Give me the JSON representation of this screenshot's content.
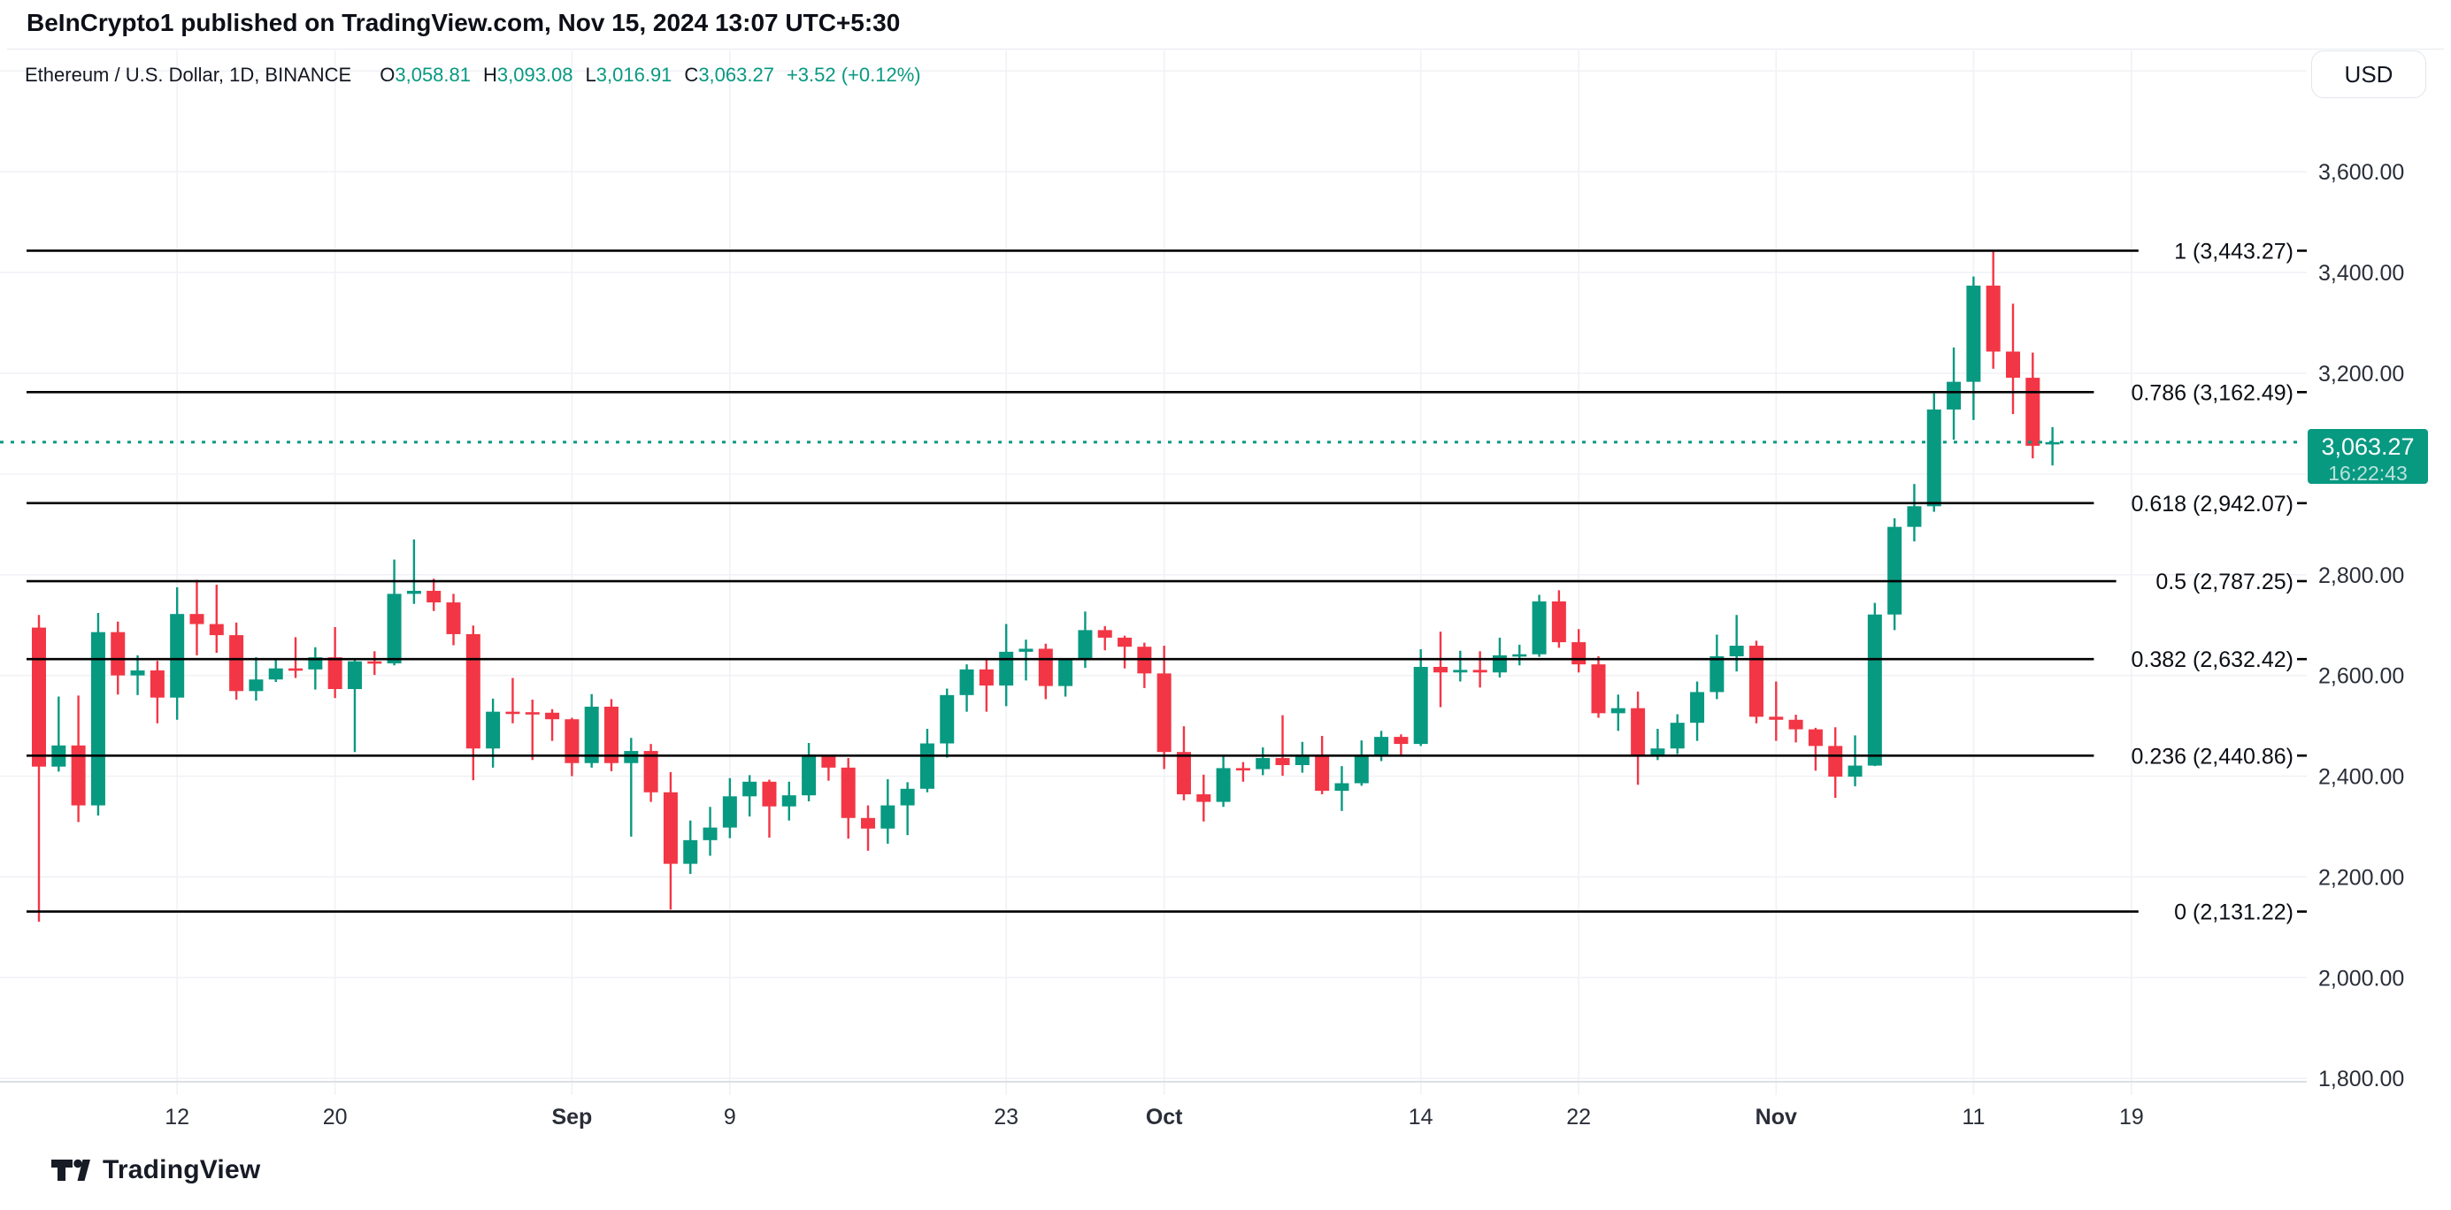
{
  "header": {
    "published_line": "BeInCrypto1 published on TradingView.com, Nov 15, 2024 13:07 UTC+5:30"
  },
  "legend": {
    "symbol": "Ethereum / U.S. Dollar, 1D, BINANCE",
    "open_label": "O",
    "open": "3,058.81",
    "high_label": "H",
    "high": "3,093.08",
    "low_label": "L",
    "low": "3,016.91",
    "close_label": "C",
    "close": "3,063.27",
    "change": "+3.52 (+0.12%)"
  },
  "price_scale": {
    "currency": "USD",
    "last_price": "3,063.27",
    "countdown": "16:22:43"
  },
  "footer": {
    "brand": "TradingView"
  },
  "chart_data": {
    "type": "candlestick",
    "symbol": "Ethereum / U.S. Dollar",
    "interval": "1D",
    "exchange": "BINANCE",
    "colors": {
      "up": "#089981",
      "down": "#F23645",
      "fib_line": "#000000",
      "last_price_line": "#089981",
      "grid": "#f0f2f6",
      "axis_text": "#2a2e39",
      "axis_line": "#dcdfe5"
    },
    "y_axis": {
      "min": 1800,
      "max": 3800,
      "step": 200,
      "gridline_values": [
        3800,
        3600,
        3400,
        3200,
        3000,
        2800,
        2600,
        2400,
        2200,
        2000,
        1800
      ],
      "tick_labels": [
        {
          "value": 3600,
          "label": "3,600.00"
        },
        {
          "value": 3400,
          "label": "3,400.00"
        },
        {
          "value": 3200,
          "label": "3,200.00"
        },
        {
          "value": 2800,
          "label": "2,800.00"
        },
        {
          "value": 2600,
          "label": "2,600.00"
        },
        {
          "value": 2400,
          "label": "2,400.00"
        },
        {
          "value": 2200,
          "label": "2,200.00"
        },
        {
          "value": 2000,
          "label": "2,000.00"
        },
        {
          "value": 1800,
          "label": "1,800.00"
        }
      ]
    },
    "x_labels": [
      {
        "label": "12",
        "date": "Aug 12"
      },
      {
        "label": "20",
        "date": "Aug 20"
      },
      {
        "label": "Sep",
        "date": "Sep 1"
      },
      {
        "label": "9",
        "date": "Sep 9"
      },
      {
        "label": "23",
        "date": "Sep 23"
      },
      {
        "label": "Oct",
        "date": "Oct 1"
      },
      {
        "label": "14",
        "date": "Oct 14"
      },
      {
        "label": "22",
        "date": "Oct 22"
      },
      {
        "label": "Nov",
        "date": "Nov 1"
      },
      {
        "label": "11",
        "date": "Nov 11"
      },
      {
        "label": "19",
        "date": "Nov 19"
      }
    ],
    "fib_levels": [
      {
        "level": 1,
        "price": 3443.27,
        "label": "1 (3,443.27)"
      },
      {
        "level": 0.786,
        "price": 3162.49,
        "label": "0.786 (3,162.49)"
      },
      {
        "level": 0.618,
        "price": 2942.07,
        "label": "0.618 (2,942.07)"
      },
      {
        "level": 0.5,
        "price": 2787.25,
        "label": "0.5 (2,787.25)"
      },
      {
        "level": 0.382,
        "price": 2632.42,
        "label": "0.382 (2,632.42)"
      },
      {
        "level": 0.236,
        "price": 2440.86,
        "label": "0.236 (2,440.86)"
      },
      {
        "level": 0,
        "price": 2131.22,
        "label": "0 (2,131.22)"
      }
    ],
    "last_price": {
      "value": 3063.27,
      "label": "3,063.27",
      "countdown": "16:22:43"
    },
    "candle_fields": [
      "date",
      "open",
      "high",
      "low",
      "close"
    ],
    "candles": [
      [
        "Aug 5",
        2695,
        2720,
        2111,
        2419
      ],
      [
        "Aug 6",
        2419,
        2558,
        2409,
        2461
      ],
      [
        "Aug 7",
        2461,
        2560,
        2309,
        2342
      ],
      [
        "Aug 8",
        2342,
        2724,
        2322,
        2686
      ],
      [
        "Aug 9",
        2686,
        2707,
        2562,
        2600
      ],
      [
        "Aug 10",
        2600,
        2640,
        2561,
        2610
      ],
      [
        "Aug 11",
        2610,
        2629,
        2505,
        2556
      ],
      [
        "Aug 12",
        2556,
        2775,
        2512,
        2722
      ],
      [
        "Aug 13",
        2722,
        2790,
        2640,
        2702
      ],
      [
        "Aug 14",
        2702,
        2780,
        2645,
        2680
      ],
      [
        "Aug 15",
        2680,
        2705,
        2552,
        2569
      ],
      [
        "Aug 16",
        2569,
        2636,
        2550,
        2592
      ],
      [
        "Aug 17",
        2592,
        2632,
        2587,
        2614
      ],
      [
        "Aug 18",
        2614,
        2676,
        2595,
        2612
      ],
      [
        "Aug 19",
        2612,
        2656,
        2572,
        2636
      ],
      [
        "Aug 20",
        2636,
        2696,
        2555,
        2573
      ],
      [
        "Aug 21",
        2573,
        2632,
        2448,
        2628
      ],
      [
        "Aug 22",
        2628,
        2648,
        2601,
        2624
      ],
      [
        "Aug 23",
        2624,
        2830,
        2620,
        2762
      ],
      [
        "Aug 24",
        2762,
        2870,
        2742,
        2768
      ],
      [
        "Aug 25",
        2768,
        2792,
        2728,
        2745
      ],
      [
        "Aug 26",
        2745,
        2762,
        2660,
        2682
      ],
      [
        "Aug 27",
        2682,
        2699,
        2392,
        2455
      ],
      [
        "Aug 28",
        2455,
        2554,
        2417,
        2528
      ],
      [
        "Aug 29",
        2528,
        2595,
        2505,
        2527
      ],
      [
        "Aug 30",
        2527,
        2552,
        2432,
        2526
      ],
      [
        "Aug 31",
        2526,
        2533,
        2470,
        2513
      ],
      [
        "Sep 1",
        2513,
        2516,
        2400,
        2426
      ],
      [
        "Sep 2",
        2426,
        2563,
        2417,
        2538
      ],
      [
        "Sep 3",
        2538,
        2553,
        2410,
        2426
      ],
      [
        "Sep 4",
        2426,
        2476,
        2280,
        2450
      ],
      [
        "Sep 5",
        2450,
        2464,
        2349,
        2368
      ],
      [
        "Sep 6",
        2368,
        2408,
        2135,
        2226
      ],
      [
        "Sep 7",
        2226,
        2312,
        2206,
        2273
      ],
      [
        "Sep 8",
        2273,
        2339,
        2242,
        2298
      ],
      [
        "Sep 9",
        2298,
        2396,
        2277,
        2360
      ],
      [
        "Sep 10",
        2360,
        2402,
        2320,
        2389
      ],
      [
        "Sep 11",
        2389,
        2393,
        2278,
        2340
      ],
      [
        "Sep 12",
        2340,
        2389,
        2312,
        2362
      ],
      [
        "Sep 13",
        2362,
        2466,
        2350,
        2440
      ],
      [
        "Sep 14",
        2440,
        2443,
        2391,
        2417
      ],
      [
        "Sep 15",
        2417,
        2436,
        2276,
        2317
      ],
      [
        "Sep 16",
        2317,
        2342,
        2252,
        2296
      ],
      [
        "Sep 17",
        2296,
        2394,
        2266,
        2342
      ],
      [
        "Sep 18",
        2342,
        2388,
        2283,
        2375
      ],
      [
        "Sep 19",
        2375,
        2494,
        2368,
        2465
      ],
      [
        "Sep 20",
        2465,
        2574,
        2437,
        2561
      ],
      [
        "Sep 21",
        2561,
        2622,
        2528,
        2612
      ],
      [
        "Sep 22",
        2612,
        2631,
        2528,
        2580
      ],
      [
        "Sep 23",
        2580,
        2702,
        2539,
        2647
      ],
      [
        "Sep 24",
        2647,
        2671,
        2590,
        2653
      ],
      [
        "Sep 25",
        2653,
        2663,
        2553,
        2579
      ],
      [
        "Sep 26",
        2579,
        2634,
        2558,
        2632
      ],
      [
        "Sep 27",
        2632,
        2727,
        2615,
        2690
      ],
      [
        "Sep 28",
        2690,
        2698,
        2650,
        2675
      ],
      [
        "Sep 29",
        2675,
        2679,
        2614,
        2657
      ],
      [
        "Sep 30",
        2657,
        2665,
        2575,
        2604
      ],
      [
        "Oct 1",
        2604,
        2659,
        2414,
        2448
      ],
      [
        "Oct 2",
        2448,
        2499,
        2352,
        2364
      ],
      [
        "Oct 3",
        2364,
        2403,
        2310,
        2349
      ],
      [
        "Oct 4",
        2349,
        2441,
        2339,
        2416
      ],
      [
        "Oct 5",
        2416,
        2428,
        2389,
        2414
      ],
      [
        "Oct 6",
        2414,
        2457,
        2402,
        2436
      ],
      [
        "Oct 7",
        2436,
        2521,
        2401,
        2422
      ],
      [
        "Oct 8",
        2422,
        2468,
        2407,
        2440
      ],
      [
        "Oct 9",
        2440,
        2480,
        2364,
        2371
      ],
      [
        "Oct 10",
        2371,
        2420,
        2331,
        2386
      ],
      [
        "Oct 11",
        2386,
        2471,
        2381,
        2441
      ],
      [
        "Oct 12",
        2441,
        2490,
        2430,
        2478
      ],
      [
        "Oct 13",
        2478,
        2483,
        2439,
        2464
      ],
      [
        "Oct 14",
        2464,
        2652,
        2460,
        2617
      ],
      [
        "Oct 15",
        2617,
        2687,
        2537,
        2606
      ],
      [
        "Oct 16",
        2606,
        2649,
        2588,
        2611
      ],
      [
        "Oct 17",
        2611,
        2648,
        2576,
        2606
      ],
      [
        "Oct 18",
        2606,
        2675,
        2596,
        2640
      ],
      [
        "Oct 19",
        2640,
        2661,
        2620,
        2642
      ],
      [
        "Oct 20",
        2642,
        2760,
        2637,
        2747
      ],
      [
        "Oct 21",
        2747,
        2769,
        2655,
        2666
      ],
      [
        "Oct 22",
        2666,
        2692,
        2606,
        2622
      ],
      [
        "Oct 23",
        2622,
        2638,
        2516,
        2525
      ],
      [
        "Oct 24",
        2525,
        2562,
        2490,
        2535
      ],
      [
        "Oct 25",
        2535,
        2568,
        2383,
        2440
      ],
      [
        "Oct 26",
        2440,
        2494,
        2432,
        2455
      ],
      [
        "Oct 27",
        2455,
        2523,
        2444,
        2506
      ],
      [
        "Oct 28",
        2506,
        2588,
        2470,
        2567
      ],
      [
        "Oct 29",
        2567,
        2681,
        2553,
        2638
      ],
      [
        "Oct 30",
        2638,
        2720,
        2608,
        2659
      ],
      [
        "Oct 31",
        2659,
        2669,
        2505,
        2518
      ],
      [
        "Nov 1",
        2518,
        2588,
        2470,
        2512
      ],
      [
        "Nov 2",
        2512,
        2522,
        2467,
        2493
      ],
      [
        "Nov 3",
        2493,
        2496,
        2411,
        2460
      ],
      [
        "Nov 4",
        2460,
        2497,
        2357,
        2399
      ],
      [
        "Nov 5",
        2399,
        2481,
        2380,
        2421
      ],
      [
        "Nov 6",
        2421,
        2744,
        2420,
        2721
      ],
      [
        "Nov 7",
        2721,
        2912,
        2690,
        2895
      ],
      [
        "Nov 8",
        2895,
        2980,
        2866,
        2936
      ],
      [
        "Nov 9",
        2936,
        3160,
        2925,
        3128
      ],
      [
        "Nov 10",
        3128,
        3251,
        3068,
        3183
      ],
      [
        "Nov 11",
        3183,
        3392,
        3107,
        3374
      ],
      [
        "Nov 12",
        3374,
        3444,
        3209,
        3243
      ],
      [
        "Nov 13",
        3243,
        3338,
        3119,
        3191
      ],
      [
        "Nov 14",
        3191,
        3241,
        3031,
        3056
      ],
      [
        "Nov 15",
        3058.81,
        3093.08,
        3016.91,
        3063.27
      ]
    ]
  }
}
